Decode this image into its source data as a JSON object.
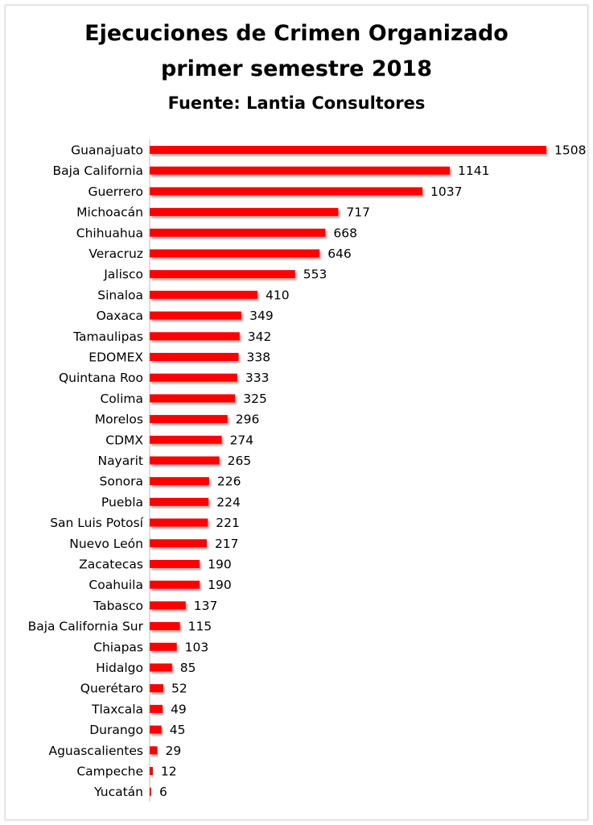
{
  "chart_data": {
    "type": "bar",
    "orientation": "horizontal",
    "title": "Ejecuciones de Crimen Organizado",
    "title_line2": "primer semestre 2018",
    "subtitle": "Fuente: Lantia Consultores",
    "xlabel": "",
    "ylabel": "",
    "xlim": [
      0,
      1508
    ],
    "grid": false,
    "legend": "none",
    "bar_color": "#ff0000",
    "categories": [
      "Guanajuato",
      "Baja California",
      "Guerrero",
      "Michoacán",
      "Chihuahua",
      "Veracruz",
      "Jalisco",
      "Sinaloa",
      "Oaxaca",
      "Tamaulipas",
      "EDOMEX",
      "Quintana Roo",
      "Colima",
      "Morelos",
      "CDMX",
      "Nayarit",
      "Sonora",
      "Puebla",
      "San Luis Potosí",
      "Nuevo León",
      "Zacatecas",
      "Coahuila",
      "Tabasco",
      "Baja California Sur",
      "Chiapas",
      "Hidalgo",
      "Querétaro",
      "Tlaxcala",
      "Durango",
      "Aguascalientes",
      "Campeche",
      "Yucatán"
    ],
    "values": [
      1508,
      1141,
      1037,
      717,
      668,
      646,
      553,
      410,
      349,
      342,
      338,
      333,
      325,
      296,
      274,
      265,
      226,
      224,
      221,
      217,
      190,
      190,
      137,
      115,
      103,
      85,
      52,
      49,
      45,
      29,
      12,
      6
    ]
  }
}
